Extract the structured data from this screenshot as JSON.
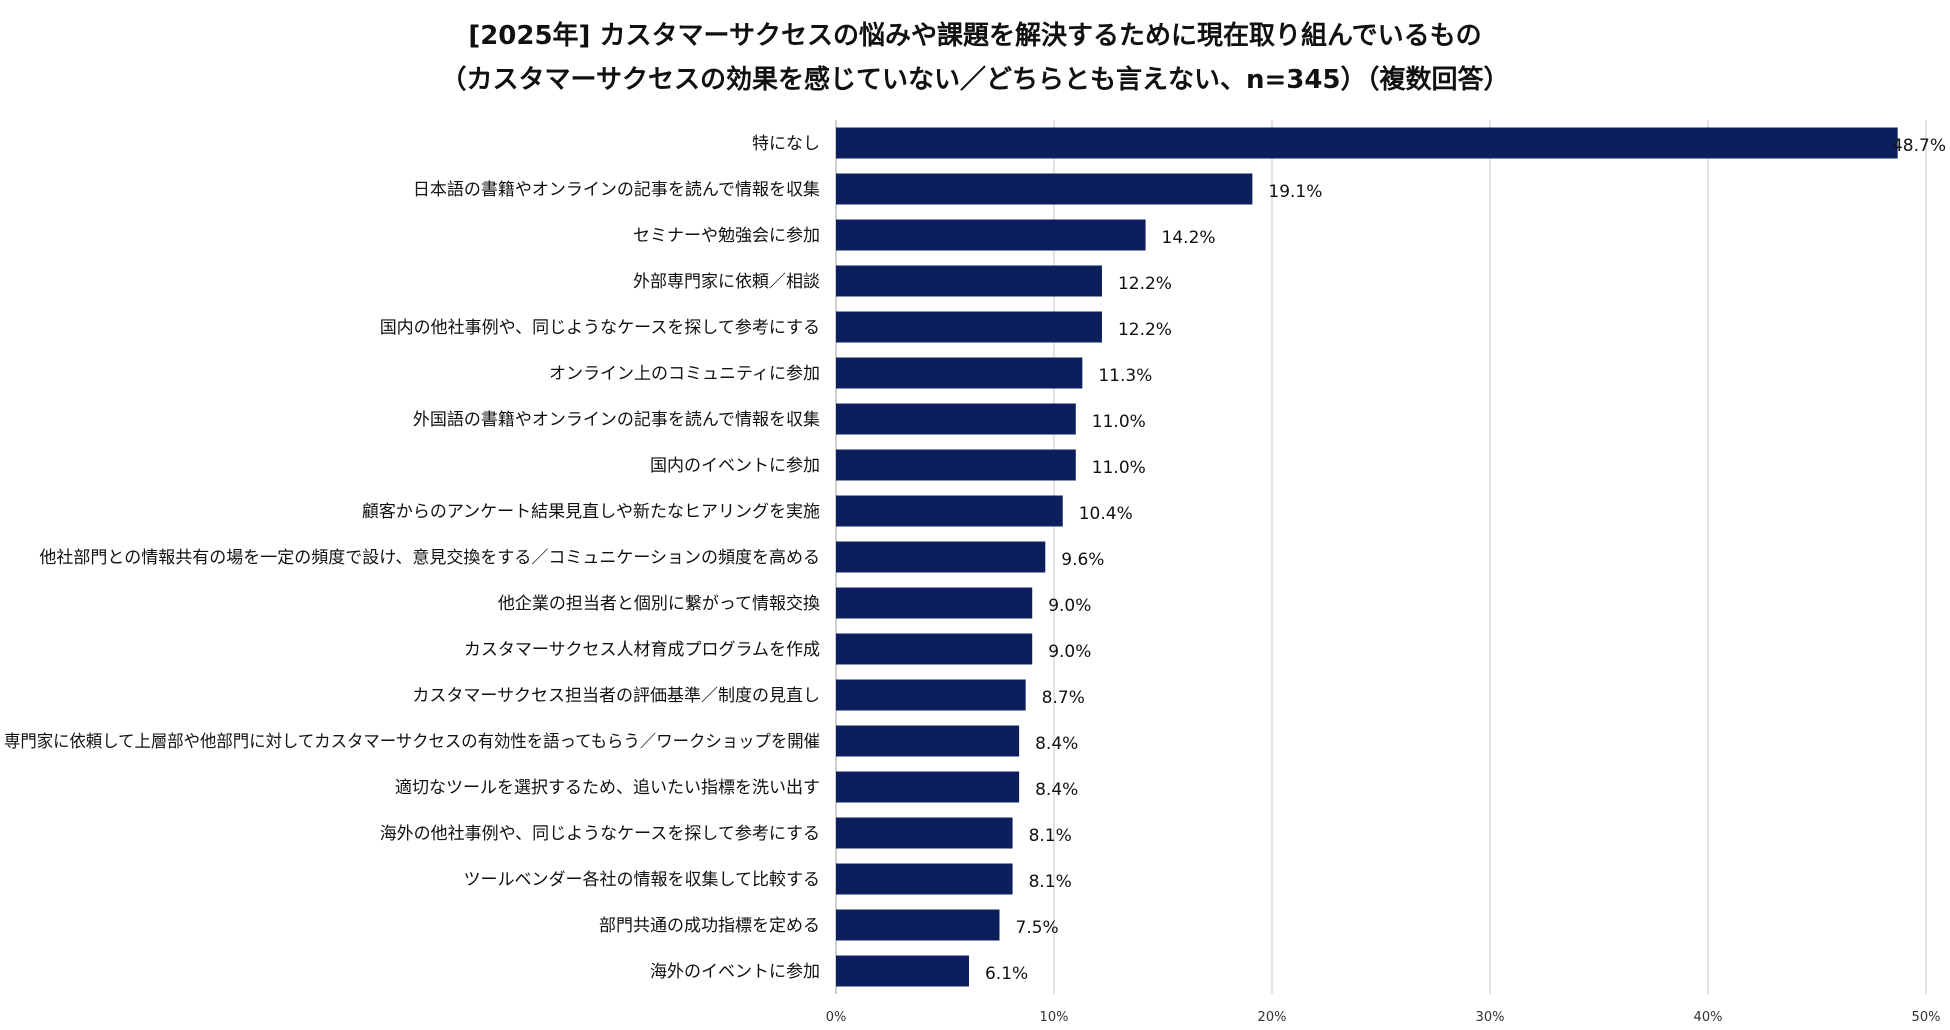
{
  "chart_data": {
    "type": "bar",
    "orientation": "horizontal",
    "title_line1": "[2025年] カスタマーサクセスの悩みや課題を解決するために現在取り組んでいるもの",
    "title_line2": "（カスタマーサクセスの効果を感じていない／どちらとも言えない、n=345）（複数回答）",
    "categories": [
      "特になし",
      "日本語の書籍やオンラインの記事を読んで情報を収集",
      "セミナーや勉強会に参加",
      "外部専門家に依頼／相談",
      "国内の他社事例や、同じようなケースを探して参考にする",
      "オンライン上のコミュニティに参加",
      "外国語の書籍やオンラインの記事を読んで情報を収集",
      "国内のイベントに参加",
      "顧客からのアンケート結果見直しや新たなヒアリングを実施",
      "他社部門との情報共有の場を一定の頻度で設け、意見交換をする／コミュニケーションの頻度を高める",
      "他企業の担当者と個別に繋がって情報交換",
      "カスタマーサクセス人材育成プログラムを作成",
      "カスタマーサクセス担当者の評価基準／制度の見直し",
      "専門家に依頼して上層部や他部門に対してカスタマーサクセスの有効性を語ってもらう／ワークショップを開催",
      "適切なツールを選択するため、追いたい指標を洗い出す",
      "海外の他社事例や、同じようなケースを探して参考にする",
      "ツールベンダー各社の情報を収集して比較する",
      "部門共通の成功指標を定める",
      "海外のイベントに参加"
    ],
    "values": [
      48.7,
      19.1,
      14.2,
      12.2,
      12.2,
      11.3,
      11.0,
      11.0,
      10.4,
      9.6,
      9.0,
      9.0,
      8.7,
      8.4,
      8.4,
      8.1,
      8.1,
      7.5,
      6.1
    ],
    "value_labels": [
      "48.7%",
      "19.1%",
      "14.2%",
      "12.2%",
      "12.2%",
      "11.3%",
      "11.0%",
      "11.0%",
      "10.4%",
      "9.6%",
      "9.0%",
      "9.0%",
      "8.7%",
      "8.4%",
      "8.4%",
      "8.1%",
      "8.1%",
      "7.5%",
      "6.1%"
    ],
    "xticks": [
      0,
      10,
      20,
      30,
      40,
      50
    ],
    "xtick_labels": [
      "0%",
      "10%",
      "20%",
      "30%",
      "40%",
      "50%"
    ],
    "xlim": [
      0,
      50
    ],
    "bar_color": "#0b1f5c",
    "grid_color": "#d9d9d9",
    "grid": true
  }
}
